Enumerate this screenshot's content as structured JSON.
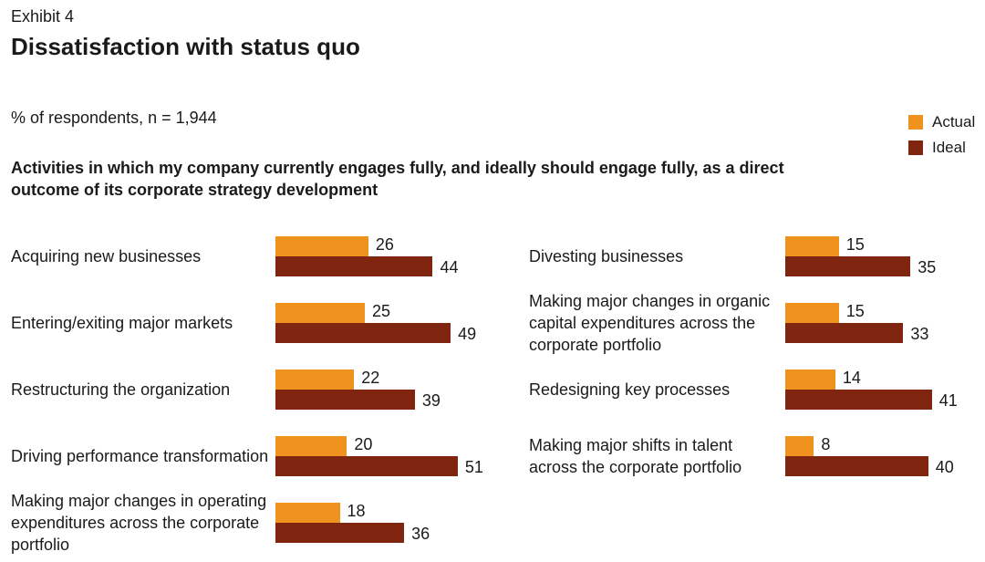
{
  "header": {
    "exhibit": "Exhibit 4",
    "title": "Dissatisfaction with status quo",
    "subtitle": "% of respondents, n = 1,944",
    "heading": "Activities in which my company currently engages fully, and ideally should engage fully, as a direct outcome of its corporate strategy development"
  },
  "colors": {
    "actual": "#F0931E",
    "ideal": "#7F2510"
  },
  "chart_data": {
    "type": "bar",
    "orientation": "horizontal",
    "legend": "top-right",
    "grid": false,
    "series_names": [
      "Actual",
      "Ideal"
    ],
    "columns": [
      {
        "items": [
          {
            "label": "Acquiring new businesses",
            "actual": 26,
            "ideal": 44
          },
          {
            "label": "Entering/exiting major markets",
            "actual": 25,
            "ideal": 49
          },
          {
            "label": "Restructuring the organization",
            "actual": 22,
            "ideal": 39
          },
          {
            "label": "Driving performance transformation",
            "actual": 20,
            "ideal": 51
          },
          {
            "label": "Making major changes in operating expenditures across the corporate portfolio",
            "actual": 18,
            "ideal": 36
          }
        ]
      },
      {
        "items": [
          {
            "label": "Divesting businesses",
            "actual": 15,
            "ideal": 35
          },
          {
            "label": "Making major changes in organic capital expenditures across the corporate portfolio",
            "actual": 15,
            "ideal": 33
          },
          {
            "label": "Redesigning key processes",
            "actual": 14,
            "ideal": 41
          },
          {
            "label": "Making major shifts in talent across the corporate portfolio",
            "actual": 8,
            "ideal": 40
          }
        ]
      }
    ]
  }
}
